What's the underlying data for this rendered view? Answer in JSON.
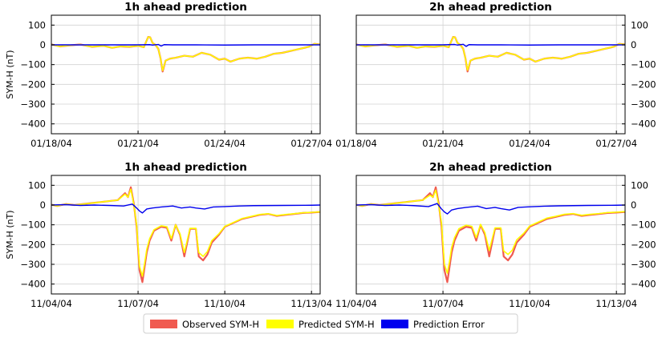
{
  "chart_data": [
    {
      "type": "line",
      "title": "1h ahead prediction",
      "ylabel": "SYM-H (nT)",
      "ytick_side": "left",
      "ylim": [
        -450,
        150
      ],
      "yticks": [
        "100",
        "0",
        "−100",
        "−200",
        "−300",
        "−400"
      ],
      "xlim": [
        0,
        9.3
      ],
      "xticks": [
        {
          "x": 0,
          "label": "01/18/04"
        },
        {
          "x": 3,
          "label": "01/21/04"
        },
        {
          "x": 6,
          "label": "01/24/04"
        },
        {
          "x": 9,
          "label": "01/27/04"
        }
      ],
      "grid": true,
      "series": [
        {
          "name": "Observed SYM-H",
          "color": "#f05a50",
          "x": [
            0,
            0.3,
            0.6,
            1.0,
            1.4,
            1.8,
            2.1,
            2.4,
            2.7,
            3.0,
            3.2,
            3.35,
            3.42,
            3.5,
            3.6,
            3.7,
            3.78,
            3.85,
            3.95,
            4.1,
            4.3,
            4.6,
            4.9,
            5.2,
            5.5,
            5.8,
            6.0,
            6.2,
            6.5,
            6.8,
            7.1,
            7.4,
            7.7,
            8.0,
            8.3,
            8.6,
            8.9,
            9.1,
            9.3
          ],
          "y": [
            2,
            -8,
            -3,
            2,
            -10,
            -5,
            -15,
            -8,
            -10,
            -5,
            -12,
            40,
            38,
            10,
            0,
            -20,
            -70,
            -135,
            -80,
            -70,
            -65,
            -55,
            -60,
            -40,
            -50,
            -75,
            -70,
            -85,
            -70,
            -65,
            -70,
            -60,
            -45,
            -40,
            -30,
            -20,
            -10,
            5,
            2
          ]
        },
        {
          "name": "Predicted SYM-H",
          "color": "#ffff00",
          "x": [
            0,
            0.3,
            0.6,
            1.0,
            1.4,
            1.8,
            2.1,
            2.4,
            2.7,
            3.0,
            3.2,
            3.35,
            3.42,
            3.5,
            3.6,
            3.7,
            3.78,
            3.85,
            3.95,
            4.1,
            4.3,
            4.6,
            4.9,
            5.2,
            5.5,
            5.8,
            6.0,
            6.2,
            6.5,
            6.8,
            7.1,
            7.4,
            7.7,
            8.0,
            8.3,
            8.6,
            8.9,
            9.1,
            9.3
          ],
          "y": [
            2,
            -8,
            -3,
            2,
            -10,
            -5,
            -15,
            -8,
            -10,
            -5,
            -12,
            40,
            38,
            10,
            0,
            -20,
            -70,
            -130,
            -80,
            -70,
            -65,
            -55,
            -60,
            -40,
            -50,
            -75,
            -70,
            -85,
            -70,
            -65,
            -70,
            -60,
            -45,
            -40,
            -30,
            -20,
            -10,
            5,
            2
          ]
        },
        {
          "name": "Prediction Error",
          "color": "#0000ee",
          "x": [
            0,
            1.0,
            2.0,
            3.0,
            3.4,
            3.5,
            3.7,
            3.8,
            3.9,
            4.2,
            5.0,
            6.0,
            7.0,
            8.0,
            9.0,
            9.3
          ],
          "y": [
            0,
            0,
            0,
            0,
            1,
            -1,
            2,
            -6,
            1,
            0,
            0,
            -1,
            0,
            0,
            0,
            0
          ]
        }
      ]
    },
    {
      "type": "line",
      "title": "2h ahead prediction",
      "ylabel": "",
      "ytick_side": "right",
      "ylim": [
        -450,
        150
      ],
      "yticks": [
        "100",
        "0",
        "−100",
        "−200",
        "−300",
        "−400"
      ],
      "xlim": [
        0,
        9.3
      ],
      "xticks": [
        {
          "x": 0,
          "label": "01/18/04"
        },
        {
          "x": 3,
          "label": "01/21/04"
        },
        {
          "x": 6,
          "label": "01/24/04"
        },
        {
          "x": 9,
          "label": "01/27/04"
        }
      ],
      "grid": true,
      "series": [
        {
          "name": "Observed SYM-H",
          "color": "#f05a50",
          "x": [
            0,
            0.3,
            0.6,
            1.0,
            1.4,
            1.8,
            2.1,
            2.4,
            2.7,
            3.0,
            3.2,
            3.35,
            3.42,
            3.5,
            3.6,
            3.7,
            3.78,
            3.85,
            3.95,
            4.1,
            4.3,
            4.6,
            4.9,
            5.2,
            5.5,
            5.8,
            6.0,
            6.2,
            6.5,
            6.8,
            7.1,
            7.4,
            7.7,
            8.0,
            8.3,
            8.6,
            8.9,
            9.1,
            9.3
          ],
          "y": [
            2,
            -8,
            -3,
            2,
            -10,
            -5,
            -15,
            -8,
            -10,
            -5,
            -12,
            40,
            38,
            10,
            0,
            -20,
            -70,
            -135,
            -80,
            -70,
            -65,
            -55,
            -60,
            -40,
            -50,
            -75,
            -70,
            -85,
            -70,
            -65,
            -70,
            -60,
            -45,
            -40,
            -30,
            -20,
            -10,
            5,
            2
          ]
        },
        {
          "name": "Predicted SYM-H",
          "color": "#ffff00",
          "x": [
            0,
            0.3,
            0.6,
            1.0,
            1.4,
            1.8,
            2.1,
            2.4,
            2.7,
            3.0,
            3.2,
            3.35,
            3.42,
            3.5,
            3.6,
            3.7,
            3.78,
            3.85,
            3.95,
            4.1,
            4.3,
            4.6,
            4.9,
            5.2,
            5.5,
            5.8,
            6.0,
            6.2,
            6.5,
            6.8,
            7.1,
            7.4,
            7.7,
            8.0,
            8.3,
            8.6,
            8.9,
            9.1,
            9.3
          ],
          "y": [
            2,
            -8,
            -3,
            2,
            -10,
            -5,
            -15,
            -8,
            -10,
            -5,
            -12,
            40,
            38,
            10,
            0,
            -20,
            -70,
            -128,
            -80,
            -70,
            -65,
            -55,
            -60,
            -40,
            -50,
            -75,
            -70,
            -85,
            -70,
            -65,
            -70,
            -60,
            -45,
            -40,
            -30,
            -20,
            -10,
            5,
            2
          ]
        },
        {
          "name": "Prediction Error",
          "color": "#0000ee",
          "x": [
            0,
            1.0,
            2.0,
            3.0,
            3.4,
            3.5,
            3.7,
            3.8,
            3.9,
            4.2,
            5.0,
            6.0,
            7.0,
            8.0,
            9.0,
            9.3
          ],
          "y": [
            0,
            0,
            0,
            0,
            2,
            -1,
            3,
            -8,
            1,
            0,
            0,
            -1,
            0,
            0,
            0,
            0
          ]
        }
      ]
    },
    {
      "type": "line",
      "title": "1h ahead prediction",
      "ylabel": "SYM-H (nT)",
      "ytick_side": "left",
      "ylim": [
        -450,
        150
      ],
      "yticks": [
        "100",
        "0",
        "−100",
        "−200",
        "−300",
        "−400"
      ],
      "xlim": [
        0,
        9.3
      ],
      "xticks": [
        {
          "x": 0,
          "label": "11/04/04"
        },
        {
          "x": 3,
          "label": "11/07/04"
        },
        {
          "x": 6,
          "label": "11/10/04"
        },
        {
          "x": 9,
          "label": "11/13/04"
        }
      ],
      "grid": true,
      "series": [
        {
          "name": "Observed SYM-H",
          "color": "#f05a50",
          "x": [
            0,
            0.2,
            0.5,
            0.8,
            1.1,
            1.4,
            1.7,
            2.0,
            2.3,
            2.55,
            2.65,
            2.75,
            2.85,
            2.95,
            3.05,
            3.15,
            3.22,
            3.3,
            3.4,
            3.55,
            3.8,
            4.0,
            4.15,
            4.3,
            4.45,
            4.6,
            4.8,
            5.0,
            5.1,
            5.25,
            5.4,
            5.55,
            5.8,
            6.0,
            6.3,
            6.6,
            6.9,
            7.2,
            7.5,
            7.8,
            8.1,
            8.4,
            8.7,
            9.0,
            9.3
          ],
          "y": [
            2,
            -5,
            5,
            0,
            5,
            10,
            15,
            20,
            25,
            60,
            40,
            90,
            10,
            -110,
            -330,
            -390,
            -320,
            -240,
            -180,
            -130,
            -110,
            -115,
            -180,
            -100,
            -150,
            -260,
            -120,
            -120,
            -260,
            -280,
            -250,
            -190,
            -150,
            -110,
            -90,
            -70,
            -60,
            -50,
            -45,
            -55,
            -50,
            -45,
            -40,
            -38,
            -35
          ]
        },
        {
          "name": "Predicted SYM-H",
          "color": "#ffff00",
          "x": [
            0,
            0.2,
            0.5,
            0.8,
            1.1,
            1.4,
            1.7,
            2.0,
            2.3,
            2.55,
            2.65,
            2.75,
            2.85,
            2.95,
            3.05,
            3.15,
            3.22,
            3.3,
            3.4,
            3.55,
            3.8,
            4.0,
            4.15,
            4.3,
            4.45,
            4.6,
            4.8,
            5.0,
            5.1,
            5.25,
            5.4,
            5.55,
            5.8,
            6.0,
            6.3,
            6.6,
            6.9,
            7.2,
            7.5,
            7.8,
            8.1,
            8.4,
            8.7,
            9.0,
            9.3
          ],
          "y": [
            2,
            -5,
            5,
            0,
            5,
            10,
            15,
            20,
            25,
            55,
            40,
            80,
            5,
            -100,
            -310,
            -360,
            -300,
            -225,
            -170,
            -125,
            -105,
            -110,
            -170,
            -100,
            -145,
            -240,
            -118,
            -118,
            -240,
            -260,
            -235,
            -180,
            -145,
            -108,
            -88,
            -68,
            -58,
            -48,
            -44,
            -53,
            -48,
            -44,
            -39,
            -37,
            -34
          ]
        },
        {
          "name": "Prediction Error",
          "color": "#0000ee",
          "x": [
            0,
            0.5,
            1.0,
            1.5,
            2.0,
            2.5,
            2.8,
            2.95,
            3.05,
            3.15,
            3.3,
            3.5,
            3.8,
            4.2,
            4.5,
            4.8,
            5.0,
            5.3,
            5.6,
            6.0,
            6.5,
            7.0,
            8.0,
            9.0,
            9.3
          ],
          "y": [
            0,
            2,
            -2,
            0,
            -2,
            -5,
            5,
            -15,
            -30,
            -40,
            -20,
            -15,
            -10,
            -5,
            -15,
            -10,
            -15,
            -20,
            -10,
            -8,
            -5,
            -3,
            -2,
            -1,
            0
          ]
        }
      ]
    },
    {
      "type": "line",
      "title": "2h ahead prediction",
      "ylabel": "",
      "ytick_side": "right",
      "ylim": [
        -450,
        150
      ],
      "yticks": [
        "100",
        "0",
        "−100",
        "−200",
        "−300",
        "−400"
      ],
      "xlim": [
        0,
        9.3
      ],
      "xticks": [
        {
          "x": 0,
          "label": "11/04/04"
        },
        {
          "x": 3,
          "label": "11/07/04"
        },
        {
          "x": 6,
          "label": "11/10/04"
        },
        {
          "x": 9,
          "label": "11/13/04"
        }
      ],
      "grid": true,
      "series": [
        {
          "name": "Observed SYM-H",
          "color": "#f05a50",
          "x": [
            0,
            0.2,
            0.5,
            0.8,
            1.1,
            1.4,
            1.7,
            2.0,
            2.3,
            2.55,
            2.65,
            2.75,
            2.85,
            2.95,
            3.05,
            3.15,
            3.22,
            3.3,
            3.4,
            3.55,
            3.8,
            4.0,
            4.15,
            4.3,
            4.45,
            4.6,
            4.8,
            5.0,
            5.1,
            5.25,
            5.4,
            5.55,
            5.8,
            6.0,
            6.3,
            6.6,
            6.9,
            7.2,
            7.5,
            7.8,
            8.1,
            8.4,
            8.7,
            9.0,
            9.3
          ],
          "y": [
            2,
            -5,
            5,
            0,
            5,
            10,
            15,
            20,
            25,
            60,
            40,
            90,
            10,
            -110,
            -330,
            -390,
            -320,
            -240,
            -180,
            -130,
            -110,
            -115,
            -180,
            -100,
            -150,
            -260,
            -120,
            -120,
            -260,
            -280,
            -250,
            -190,
            -150,
            -110,
            -90,
            -70,
            -60,
            -50,
            -45,
            -55,
            -50,
            -45,
            -40,
            -38,
            -35
          ]
        },
        {
          "name": "Predicted SYM-H",
          "color": "#ffff00",
          "x": [
            0,
            0.2,
            0.5,
            0.8,
            1.1,
            1.4,
            1.7,
            2.0,
            2.3,
            2.55,
            2.65,
            2.75,
            2.85,
            2.95,
            3.05,
            3.15,
            3.22,
            3.3,
            3.4,
            3.55,
            3.8,
            4.0,
            4.15,
            4.3,
            4.45,
            4.6,
            4.8,
            5.0,
            5.1,
            5.25,
            5.4,
            5.55,
            5.8,
            6.0,
            6.3,
            6.6,
            6.9,
            7.2,
            7.5,
            7.8,
            8.1,
            8.4,
            8.7,
            9.0,
            9.3
          ],
          "y": [
            2,
            -5,
            5,
            0,
            5,
            10,
            15,
            20,
            25,
            50,
            40,
            75,
            0,
            -90,
            -300,
            -345,
            -290,
            -215,
            -165,
            -120,
            -102,
            -108,
            -165,
            -98,
            -140,
            -230,
            -116,
            -116,
            -232,
            -250,
            -228,
            -176,
            -142,
            -106,
            -86,
            -66,
            -57,
            -47,
            -43,
            -52,
            -47,
            -43,
            -38,
            -36,
            -33
          ]
        },
        {
          "name": "Prediction Error",
          "color": "#0000ee",
          "x": [
            0,
            0.5,
            1.0,
            1.5,
            2.0,
            2.5,
            2.8,
            2.95,
            3.05,
            3.15,
            3.3,
            3.5,
            3.8,
            4.2,
            4.5,
            4.8,
            5.0,
            5.3,
            5.6,
            6.0,
            6.5,
            7.0,
            8.0,
            9.0,
            9.3
          ],
          "y": [
            0,
            2,
            -2,
            0,
            -3,
            -8,
            8,
            -20,
            -35,
            -45,
            -25,
            -18,
            -12,
            -6,
            -18,
            -12,
            -18,
            -25,
            -12,
            -9,
            -6,
            -4,
            -2,
            -1,
            0
          ]
        }
      ]
    }
  ],
  "legend": {
    "placement": "bottom-center",
    "items": [
      {
        "label": "Observed SYM-H",
        "color": "#f05a50"
      },
      {
        "label": "Predicted SYM-H",
        "color": "#ffff00"
      },
      {
        "label": "Prediction Error",
        "color": "#0000ee"
      }
    ]
  }
}
